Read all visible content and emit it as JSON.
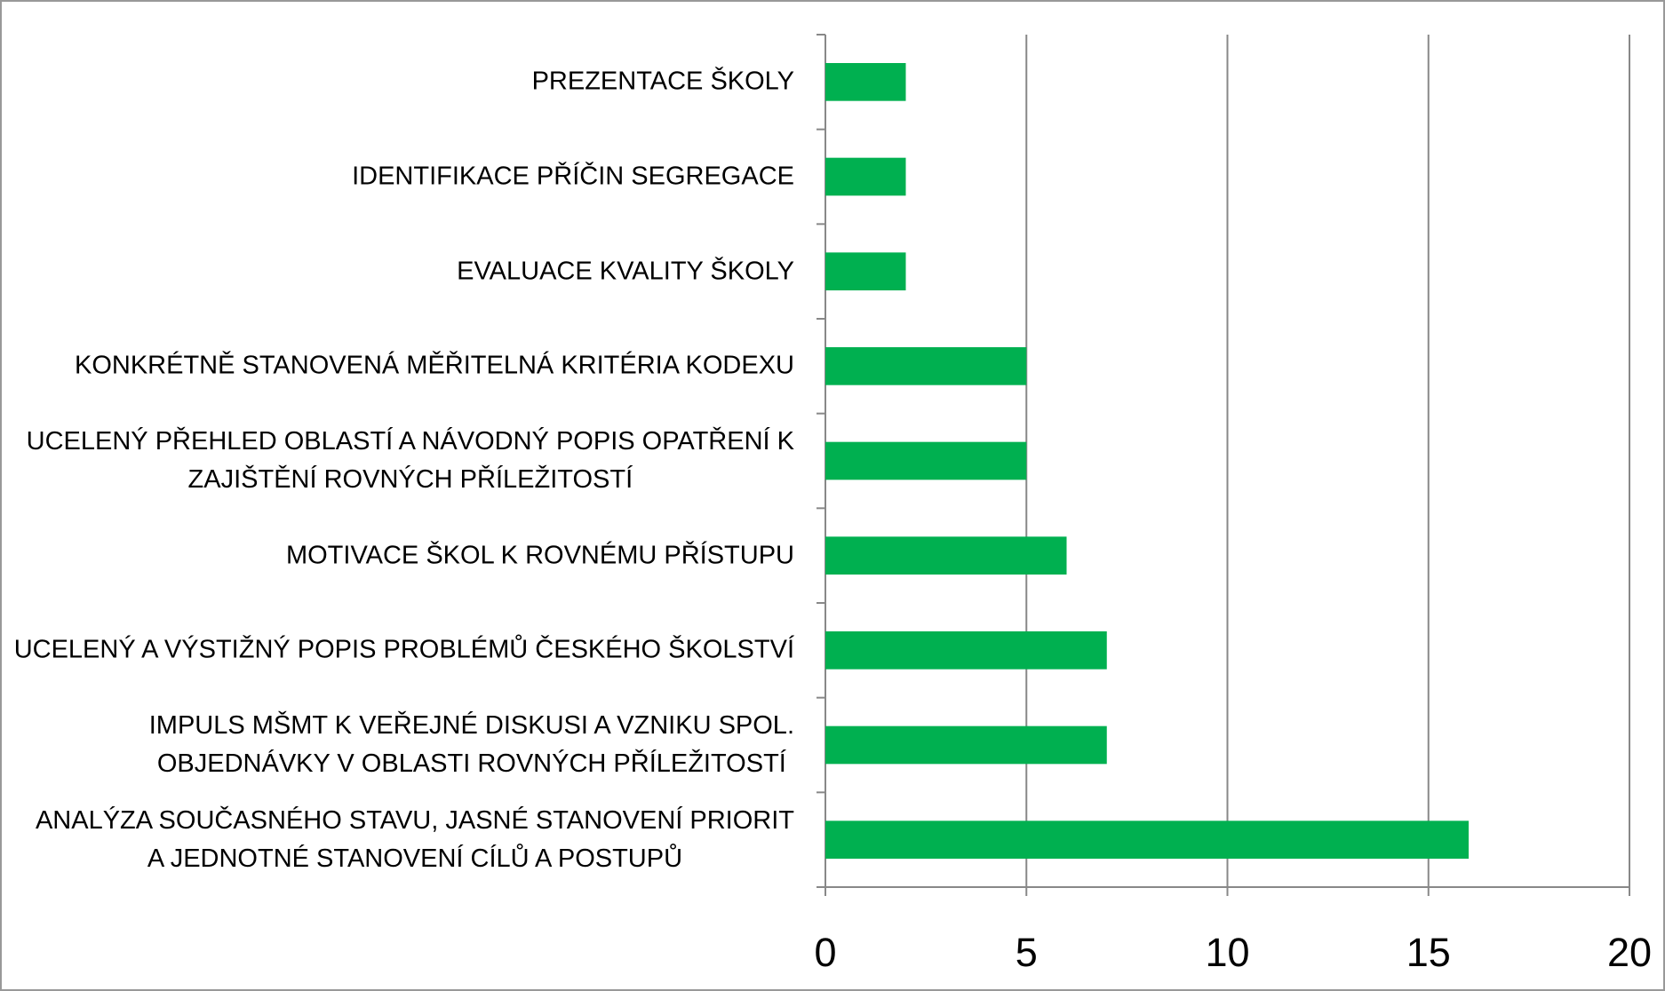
{
  "chart_data": {
    "type": "bar",
    "orientation": "horizontal",
    "categories": [
      "PREZENTACE ŠKOLY",
      "IDENTIFIKACE PŘÍČIN SEGREGACE",
      "EVALUACE KVALITY ŠKOLY",
      "KONKRÉTNĚ STANOVENÁ MĚŘITELNÁ KRITÉRIA KODEXU",
      "UCELENÝ PŘEHLED OBLASTÍ A NÁVODNÝ POPIS OPATŘENÍ K\nZAJIŠTĚNÍ ROVNÝCH PŘÍLEŽITOSTÍ",
      "MOTIVACE ŠKOL K ROVNÉMU PŘÍSTUPU",
      "UCELENÝ A VÝSTIŽNÝ POPIS PROBLÉMŮ ČESKÉHO ŠKOLSTVÍ",
      "IMPULS MŠMT K VEŘEJNÉ DISKUSI A VZNIKU SPOL.\nOBJEDNÁVKY V OBLASTI ROVNÝCH PŘÍLEŽITOSTÍ",
      "ANALÝZA SOUČASNÉHO STAVU, JASNÉ STANOVENÍ PRIORIT\nA JEDNOTNÉ STANOVENÍ CÍLŮ A POSTUPŮ"
    ],
    "values": [
      2,
      2,
      2,
      5,
      5,
      6,
      7,
      7,
      16
    ],
    "color": "#00b050",
    "xlim": [
      0,
      20
    ],
    "xticks": [
      0,
      5,
      10,
      15,
      20
    ],
    "grid": true
  }
}
